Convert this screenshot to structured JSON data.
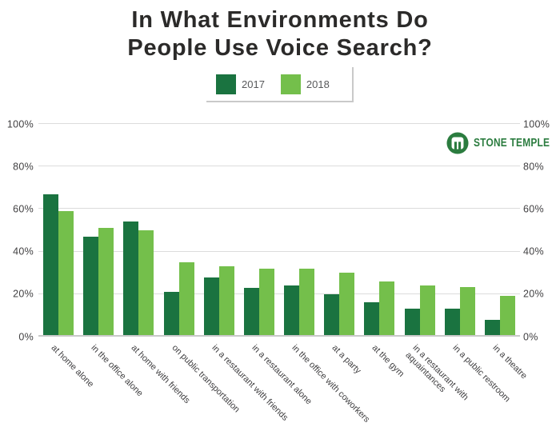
{
  "title": {
    "line1": "In What Environments Do",
    "line2": "People Use Voice Search?"
  },
  "logo": {
    "name": "Stone Temple",
    "text": "STONE TEMPLE",
    "color": "#2b7c3f"
  },
  "colors": {
    "series_2017": "#1a7340",
    "series_2018": "#74bf4b",
    "gridline": "#dcdcdc",
    "axis_text": "#414042",
    "title_text": "#2b2a29"
  },
  "chart_data": {
    "type": "bar",
    "title": "In What Environments Do People Use Voice Search?",
    "categories": [
      "at home alone",
      "in the office alone",
      "at home with friends",
      "on public transportation",
      "in a restaurant with friends",
      "in a restaurant alone",
      "in the office with coworkers",
      "at a party",
      "at the gym",
      "in a restaurant with\naquaintances",
      "in a public restroom",
      "in a theatre"
    ],
    "series": [
      {
        "name": "2017",
        "color": "#1a7340",
        "values": [
          67,
          47,
          54,
          21,
          28,
          23,
          24,
          20,
          16,
          13,
          13,
          8
        ]
      },
      {
        "name": "2018",
        "color": "#74bf4b",
        "values": [
          59,
          51,
          50,
          35,
          33,
          32,
          32,
          30,
          26,
          24,
          23.5,
          19
        ]
      }
    ],
    "xlabel": "",
    "ylabel": "",
    "ylim": [
      0,
      100
    ],
    "y_tick_labels": [
      "0%",
      "20%",
      "40%",
      "60%",
      "80%",
      "100%"
    ],
    "grid": true,
    "legend_position": "top-center",
    "dual_y_axis": true,
    "x_label_rotation_deg": 45
  }
}
